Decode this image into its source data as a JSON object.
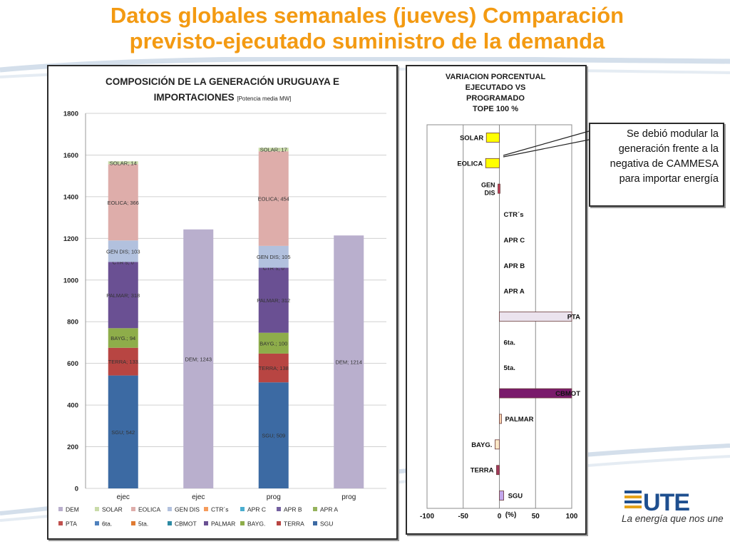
{
  "page": {
    "title_line1": "Datos globales semanales  (jueves) Comparación",
    "title_line2": "previsto-ejecutado suministro de la demanda",
    "callout": "Se debió modular la generación frente a la negativa de CAMMESA para importar energía",
    "logo_text": "UTE",
    "tagline": "La energía que nos une",
    "accent_color": "#f39a12"
  },
  "chart_data": [
    {
      "type": "bar",
      "stacked": true,
      "title_line1": "COMPOSICIÓN DE LA GENERACIÓN URUGUAYA E",
      "title_line2": "IMPORTACIONES",
      "title_note": "[Potencia media MW]",
      "categories": [
        "ejec",
        "ejec",
        "prog",
        "prog"
      ],
      "ylim": [
        0,
        1800
      ],
      "yticks": [
        0,
        200,
        400,
        600,
        800,
        1000,
        1200,
        1400,
        1600,
        1800
      ],
      "grid": true,
      "legend_placement": "bottom",
      "series": [
        {
          "name": "SGU",
          "color": "#3c6aa3",
          "values": [
            542,
            null,
            509,
            null
          ],
          "labels": [
            "SGU; 542",
            "",
            "SGU; 509",
            ""
          ]
        },
        {
          "name": "TERRA",
          "color": "#b84542",
          "values": [
            133,
            null,
            138,
            null
          ],
          "labels": [
            "TERRA; 133",
            "",
            "TERRA; 138",
            ""
          ]
        },
        {
          "name": "BAYG.",
          "color": "#8ead4a",
          "values": [
            94,
            null,
            100,
            null
          ],
          "labels": [
            "BAYG.; 94",
            "",
            "BAYG.; 100",
            ""
          ]
        },
        {
          "name": "PALMAR",
          "color": "#6a5093",
          "values": [
            318,
            null,
            312,
            null
          ],
          "labels": [
            "PALMAR; 318",
            "",
            "PALMAR; 312",
            ""
          ]
        },
        {
          "name": "CTR´s",
          "color": "#f59b5b",
          "values": [
            0,
            null,
            0,
            null
          ],
          "labels": [
            "CTR´s; 0",
            "",
            "CTR´s; 0",
            ""
          ]
        },
        {
          "name": "GEN DIS",
          "color": "#b2c1de",
          "values": [
            103,
            null,
            105,
            null
          ],
          "labels": [
            "GEN DIS; 103",
            "",
            "GEN DIS; 105",
            ""
          ]
        },
        {
          "name": "EOLICA",
          "color": "#deadaa",
          "values": [
            366,
            null,
            454,
            null
          ],
          "labels": [
            "EOLICA; 366",
            "",
            "EOLICA; 454",
            ""
          ]
        },
        {
          "name": "SOLAR",
          "color": "#c9dba9",
          "values": [
            14,
            null,
            17,
            null
          ],
          "labels": [
            "SOLAR; 14",
            "",
            "SOLAR; 17",
            ""
          ]
        },
        {
          "name": "DEM",
          "color": "#b9afcd",
          "values": [
            null,
            1243,
            null,
            1214
          ],
          "labels": [
            "",
            "DEM; 1243",
            "",
            "DEM; 1214"
          ]
        }
      ],
      "legend": [
        {
          "name": "DEM",
          "color": "#b9afcd"
        },
        {
          "name": "SOLAR",
          "color": "#c9dba9"
        },
        {
          "name": "EOLICA",
          "color": "#deadaa"
        },
        {
          "name": "GEN DIS",
          "color": "#b2c1de"
        },
        {
          "name": "CTR´s",
          "color": "#f59b5b"
        },
        {
          "name": "APR C",
          "color": "#4aaed0"
        },
        {
          "name": "APR B",
          "color": "#7460a0"
        },
        {
          "name": "APR A",
          "color": "#95b35c"
        },
        {
          "name": "PTA",
          "color": "#c0504d"
        },
        {
          "name": "6ta.",
          "color": "#4f81bd"
        },
        {
          "name": "5ta.",
          "color": "#e07b32"
        },
        {
          "name": "CBMOT",
          "color": "#2d8aa3"
        },
        {
          "name": "PALMAR",
          "color": "#6a5093"
        },
        {
          "name": "BAYG.",
          "color": "#8ead4a"
        },
        {
          "name": "TERRA",
          "color": "#b84542"
        },
        {
          "name": "SGU",
          "color": "#3c6aa3"
        }
      ]
    },
    {
      "type": "bar",
      "orientation": "horizontal",
      "title_lines": [
        "VARIACION  PORCENTUAL",
        "EJECUTADO  VS",
        "PROGRAMADO",
        "TOPE 100 %"
      ],
      "xlabel": "(%)",
      "xlim": [
        -100,
        100
      ],
      "xticks": [
        -100,
        -50,
        0,
        50,
        100
      ],
      "grid": true,
      "categories": [
        {
          "label": "SOLAR",
          "value": -18,
          "color": "#ffff00"
        },
        {
          "label": "EOLICA",
          "value": -19,
          "color": "#ffff00"
        },
        {
          "label": "GEN DIS",
          "value": -2,
          "color": "#c0405a"
        },
        {
          "label": "CTR´s",
          "value": 0,
          "color": "#ffffff"
        },
        {
          "label": "APR C",
          "value": 0,
          "color": "#ffffff"
        },
        {
          "label": "APR B",
          "value": 0,
          "color": "#ffffff"
        },
        {
          "label": "APR A",
          "value": 0,
          "color": "#ffffff"
        },
        {
          "label": "PTA",
          "value": 100,
          "color": "#ebe3ee"
        },
        {
          "label": "6ta.",
          "value": 0,
          "color": "#ffffff"
        },
        {
          "label": "5ta.",
          "value": 0,
          "color": "#ffffff"
        },
        {
          "label": "CBMOT",
          "value": 100,
          "color": "#7a1a6b"
        },
        {
          "label": "PALMAR",
          "value": 2,
          "color": "#fbd3b0"
        },
        {
          "label": "BAYG.",
          "value": -6,
          "color": "#fbe7c6"
        },
        {
          "label": "TERRA",
          "value": -4,
          "color": "#a23a5c"
        },
        {
          "label": "SGU",
          "value": 6,
          "color": "#c3a7ec"
        }
      ]
    }
  ]
}
